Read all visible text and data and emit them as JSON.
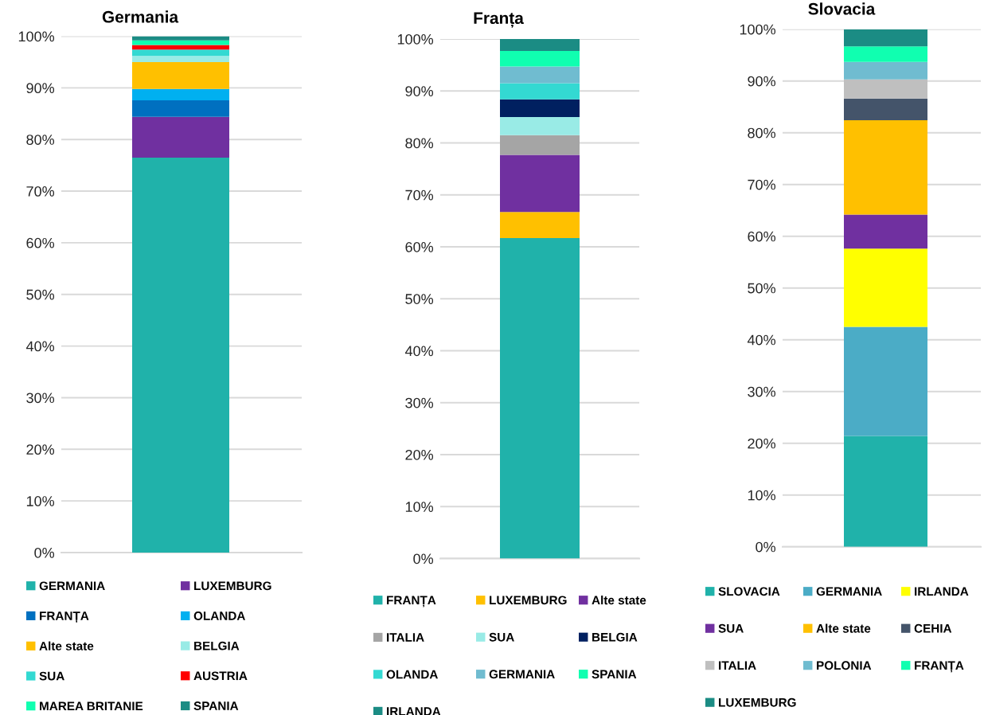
{
  "chart_data": [
    {
      "type": "bar",
      "title": "Germania",
      "stacked": true,
      "categories": [
        null
      ],
      "ylim": [
        0,
        100
      ],
      "yticks": [
        {
          "value": 0,
          "label": "0%"
        },
        {
          "value": 10,
          "label": "10%"
        },
        {
          "value": 20,
          "label": "20%"
        },
        {
          "value": 30,
          "label": "30%"
        },
        {
          "value": 40,
          "label": "40%"
        },
        {
          "value": 50,
          "label": "50%"
        },
        {
          "value": 60,
          "label": "60%"
        },
        {
          "value": 70,
          "label": "70%"
        },
        {
          "value": 80,
          "label": "80%"
        },
        {
          "value": 90,
          "label": "90%"
        },
        {
          "value": 100,
          "label": "100%"
        }
      ],
      "grid": "y",
      "legend": "bottom",
      "tick_labels": "y",
      "series": [
        {
          "name": "GERMANIA",
          "color": "#20b2aa",
          "values": [
            76.5
          ]
        },
        {
          "name": "LUXEMBURG",
          "color": "#7030a0",
          "values": [
            7.9
          ]
        },
        {
          "name": "FRANȚA",
          "color": "#0070c0",
          "values": [
            3.2
          ]
        },
        {
          "name": "OLANDA",
          "color": "#00b0f0",
          "values": [
            2.2
          ]
        },
        {
          "name": "Alte state",
          "color": "#ffc000",
          "values": [
            5.2
          ]
        },
        {
          "name": "BELGIA",
          "color": "#99ebe6",
          "values": [
            1.2
          ]
        },
        {
          "name": "SUA",
          "color": "#33d9d2",
          "values": [
            1.2
          ]
        },
        {
          "name": "AUSTRIA",
          "color": "#ff0000",
          "values": [
            0.9
          ]
        },
        {
          "name": "MAREA BRITANIE",
          "color": "#10ffb0",
          "values": [
            0.9
          ]
        },
        {
          "name": "SPANIA",
          "color": "#1b8c84",
          "values": [
            0.8
          ]
        }
      ]
    },
    {
      "type": "bar",
      "title": "Franța",
      "stacked": true,
      "categories": [
        null
      ],
      "ylim": [
        0,
        100
      ],
      "yticks": [
        {
          "value": 0,
          "label": "0%"
        },
        {
          "value": 10,
          "label": "10%"
        },
        {
          "value": 20,
          "label": "20%"
        },
        {
          "value": 30,
          "label": "30%"
        },
        {
          "value": 40,
          "label": "40%"
        },
        {
          "value": 50,
          "label": "50%"
        },
        {
          "value": 60,
          "label": "60%"
        },
        {
          "value": 70,
          "label": "70%"
        },
        {
          "value": 80,
          "label": "80%"
        },
        {
          "value": 90,
          "label": "90%"
        },
        {
          "value": 100,
          "label": "100%"
        }
      ],
      "grid": "y",
      "legend": "bottom",
      "tick_labels": "y",
      "series": [
        {
          "name": "FRANȚA",
          "color": "#20b2aa",
          "values": [
            61.7
          ]
        },
        {
          "name": "LUXEMBURG",
          "color": "#ffc000",
          "values": [
            5.0
          ]
        },
        {
          "name": "Alte state",
          "color": "#7030a0",
          "values": [
            11.0
          ]
        },
        {
          "name": "ITALIA",
          "color": "#a5a5a5",
          "values": [
            3.8
          ]
        },
        {
          "name": "SUA",
          "color": "#99ebe6",
          "values": [
            3.5
          ]
        },
        {
          "name": "BELGIA",
          "color": "#002060",
          "values": [
            3.4
          ]
        },
        {
          "name": "OLANDA",
          "color": "#33d9d2",
          "values": [
            3.1
          ]
        },
        {
          "name": "GERMANIA",
          "color": "#70bcd0",
          "values": [
            3.2
          ]
        },
        {
          "name": "SPANIA",
          "color": "#10ffb0",
          "values": [
            3.0
          ]
        },
        {
          "name": "IRLANDA",
          "color": "#1b8c84",
          "values": [
            2.3
          ]
        }
      ]
    },
    {
      "type": "bar",
      "title": "Slovacia",
      "stacked": true,
      "categories": [
        null
      ],
      "ylim": [
        0,
        100
      ],
      "yticks": [
        {
          "value": 0,
          "label": "0%"
        },
        {
          "value": 10,
          "label": "10%"
        },
        {
          "value": 20,
          "label": "20%"
        },
        {
          "value": 30,
          "label": "30%"
        },
        {
          "value": 40,
          "label": "40%"
        },
        {
          "value": 50,
          "label": "50%"
        },
        {
          "value": 60,
          "label": "60%"
        },
        {
          "value": 70,
          "label": "70%"
        },
        {
          "value": 80,
          "label": "80%"
        },
        {
          "value": 90,
          "label": "90%"
        },
        {
          "value": 100,
          "label": "100%"
        }
      ],
      "grid": "y",
      "legend": "bottom",
      "tick_labels": "y",
      "series": [
        {
          "name": "SLOVACIA",
          "color": "#20b2aa",
          "values": [
            21.4
          ]
        },
        {
          "name": "GERMANIA",
          "color": "#4bacc6",
          "values": [
            21.1
          ]
        },
        {
          "name": "IRLANDA",
          "color": "#ffff00",
          "values": [
            15.1
          ]
        },
        {
          "name": "SUA",
          "color": "#7030a0",
          "values": [
            6.6
          ]
        },
        {
          "name": "Alte state",
          "color": "#ffc000",
          "values": [
            18.2
          ]
        },
        {
          "name": "CEHIA",
          "color": "#44546a",
          "values": [
            4.2
          ]
        },
        {
          "name": "ITALIA",
          "color": "#bfbfbf",
          "values": [
            3.7
          ]
        },
        {
          "name": "POLONIA",
          "color": "#70bcd0",
          "values": [
            3.4
          ]
        },
        {
          "name": "FRANȚA",
          "color": "#10ffb0",
          "values": [
            3.0
          ]
        },
        {
          "name": "LUXEMBURG",
          "color": "#1b8c84",
          "values": [
            3.3
          ]
        }
      ]
    }
  ]
}
